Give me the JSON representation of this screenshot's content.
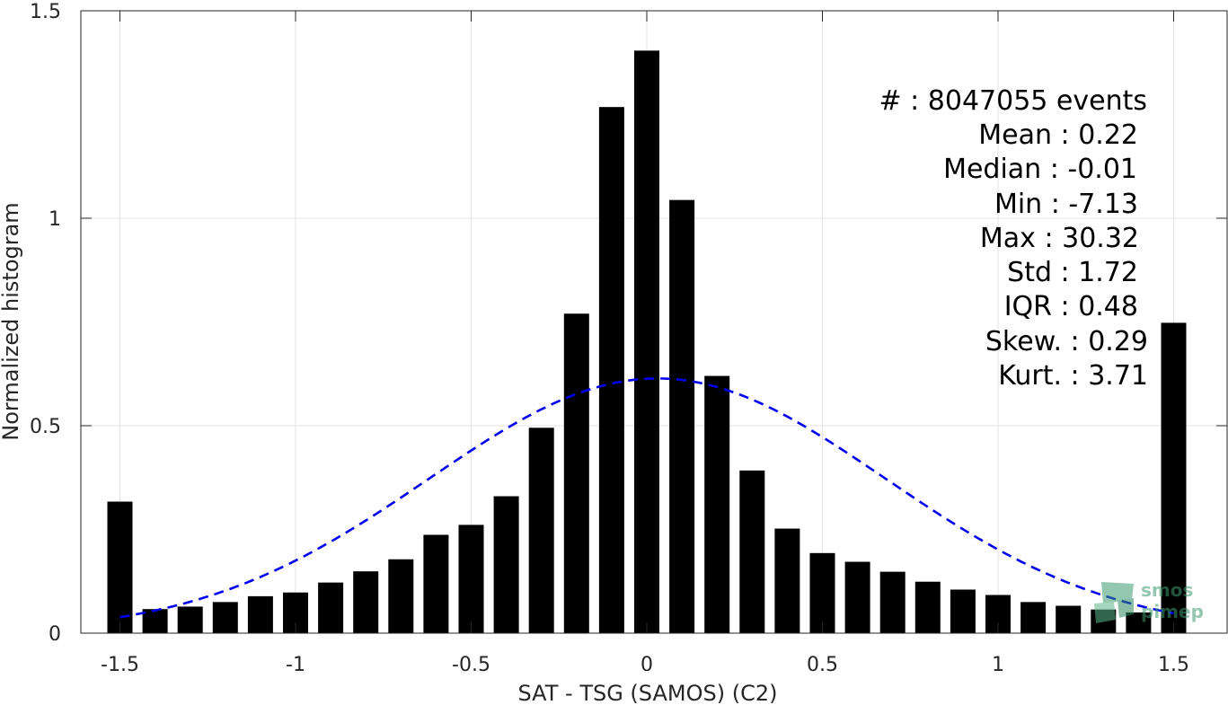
{
  "chart_data": {
    "type": "bar",
    "xlabel": "SAT - TSG (SAMOS) (C2)",
    "ylabel": "Normalized histogram",
    "xlim": [
      -1.6,
      1.6
    ],
    "ylim": [
      0,
      1.5
    ],
    "xticks": [
      "-1.5",
      "-1",
      "-0.5",
      "0",
      "0.5",
      "1",
      "1.5"
    ],
    "yticks": [
      "0",
      "0.5",
      "1",
      "1.5"
    ],
    "grid": true,
    "bar_color": "#000000",
    "fit_color": "#0000ee",
    "bars": {
      "x": [
        -1.5,
        -1.4,
        -1.3,
        -1.2,
        -1.1,
        -1.0,
        -0.9,
        -0.8,
        -0.7,
        -0.6,
        -0.5,
        -0.4,
        -0.3,
        -0.2,
        -0.1,
        0.0,
        0.1,
        0.2,
        0.3,
        0.4,
        0.5,
        0.6,
        0.7,
        0.8,
        0.9,
        1.0,
        1.1,
        1.2,
        1.3,
        1.4,
        1.5
      ],
      "values": [
        0.317,
        0.058,
        0.064,
        0.075,
        0.089,
        0.098,
        0.122,
        0.149,
        0.178,
        0.237,
        0.261,
        0.33,
        0.495,
        0.77,
        1.268,
        1.404,
        1.044,
        0.62,
        0.392,
        0.252,
        0.193,
        0.172,
        0.148,
        0.124,
        0.105,
        0.092,
        0.075,
        0.066,
        0.057,
        0.05,
        0.748
      ]
    },
    "fit_curve": {
      "style": "dashed",
      "mean": 0.03,
      "std": 0.65,
      "x_range": [
        -1.5,
        1.5
      ]
    },
    "stats": [
      "#  : 8047055 events",
      "Mean : 0.22",
      "Median : -0.01",
      "Min : -7.13",
      "Max : 30.32",
      "Std : 1.72",
      "IQR : 0.48",
      "Skew. : 0.29",
      "Kurt. : 3.71"
    ]
  },
  "watermark": {
    "line1": "smos",
    "line2": "pimep"
  }
}
